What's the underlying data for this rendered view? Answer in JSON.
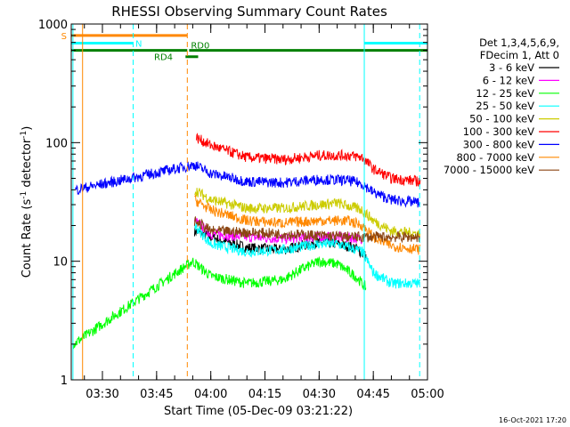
{
  "chart_data": {
    "type": "line",
    "title": "RHESSI Observing Summary Count Rates",
    "ylabel_main": "Count Rate (s",
    "ylabel_sup1": "-1",
    "ylabel_mid": " detector",
    "ylabel_sup2": "-1",
    "ylabel_end": ")",
    "xlabel": "Start Time (05-Dec-09 03:21:22)",
    "timestamp": "16-Oct-2021 17:20",
    "y_scale": "log",
    "ylim": [
      1,
      1000
    ],
    "xlim": [
      "03:21:22",
      "05:00:00"
    ],
    "y_ticks": [
      {
        "value": 1,
        "label": "1"
      },
      {
        "value": 10,
        "label": "10"
      },
      {
        "value": 100,
        "label": "100"
      },
      {
        "value": 1000,
        "label": "1000"
      }
    ],
    "x_ticks": [
      {
        "time": "03:30",
        "label": "03:30"
      },
      {
        "time": "03:45",
        "label": "03:45"
      },
      {
        "time": "04:00",
        "label": "04:00"
      },
      {
        "time": "04:15",
        "label": "04:15"
      },
      {
        "time": "04:30",
        "label": "04:30"
      },
      {
        "time": "04:45",
        "label": "04:45"
      },
      {
        "time": "05:00",
        "label": "05:00"
      }
    ],
    "legend_header": [
      "Det 1,3,4,5,6,9,",
      "FDecim 1, Att 0"
    ],
    "legend_placement": "right",
    "series": [
      {
        "name": "3 - 6 keV",
        "color": "#000000",
        "points": [
          [
            "03:55:30",
            18
          ],
          [
            "04:00",
            16
          ],
          [
            "04:10",
            13
          ],
          [
            "04:20",
            12.5
          ],
          [
            "04:30",
            14.5
          ],
          [
            "04:35",
            14
          ],
          [
            "04:40",
            13
          ],
          [
            "04:43",
            11
          ]
        ]
      },
      {
        "name": "6 - 12 keV",
        "color": "#ff00ff",
        "points": [
          [
            "03:55:30",
            22
          ],
          [
            "04:00",
            17
          ],
          [
            "04:10",
            16
          ],
          [
            "04:20",
            15.5
          ],
          [
            "04:30",
            16
          ],
          [
            "04:35",
            16
          ],
          [
            "04:42",
            15.5
          ]
        ]
      },
      {
        "name": "12 - 25 keV",
        "color": "#00ff00",
        "points": [
          [
            "03:22",
            2
          ],
          [
            "03:55",
            10
          ],
          [
            "04:00",
            7.5
          ],
          [
            "04:10",
            6.5
          ],
          [
            "04:20",
            7
          ],
          [
            "04:25",
            8.5
          ],
          [
            "04:30",
            10
          ],
          [
            "04:35",
            9.5
          ],
          [
            "04:40",
            7.5
          ],
          [
            "04:43",
            6
          ]
        ]
      },
      {
        "name": "25 - 50 keV",
        "color": "#00ffff",
        "points": [
          [
            "03:55:30",
            20
          ],
          [
            "04:00",
            14
          ],
          [
            "04:10",
            12
          ],
          [
            "04:20",
            12.5
          ],
          [
            "04:30",
            14
          ],
          [
            "04:35",
            14
          ],
          [
            "04:42",
            12
          ],
          [
            "04:45",
            8
          ],
          [
            "04:50",
            6.5
          ],
          [
            "04:58",
            6.5
          ]
        ]
      },
      {
        "name": "50 - 100 keV",
        "color": "#cccc00",
        "points": [
          [
            "03:55:30",
            40
          ],
          [
            "04:00",
            33
          ],
          [
            "04:10",
            28
          ],
          [
            "04:20",
            28
          ],
          [
            "04:30",
            30
          ],
          [
            "04:35",
            31
          ],
          [
            "04:42",
            27
          ],
          [
            "04:45",
            22
          ],
          [
            "04:50",
            18
          ],
          [
            "04:58",
            17
          ]
        ]
      },
      {
        "name": "100 - 300 keV",
        "color": "#ff0000",
        "points": [
          [
            "03:56",
            110
          ],
          [
            "04:00",
            95
          ],
          [
            "04:10",
            75
          ],
          [
            "04:20",
            72
          ],
          [
            "04:30",
            78
          ],
          [
            "04:38",
            78
          ],
          [
            "04:42",
            75
          ],
          [
            "04:45",
            60
          ],
          [
            "04:50",
            50
          ],
          [
            "04:58",
            47
          ]
        ]
      },
      {
        "name": "300 - 800 keV",
        "color": "#0000ff",
        "points": [
          [
            "03:22:30",
            40
          ],
          [
            "03:55:30",
            65
          ],
          [
            "04:00",
            55
          ],
          [
            "04:10",
            47
          ],
          [
            "04:20",
            46
          ],
          [
            "04:30",
            49
          ],
          [
            "04:38",
            48
          ],
          [
            "04:42",
            45
          ],
          [
            "04:45",
            38
          ],
          [
            "04:50",
            33
          ],
          [
            "04:58",
            31
          ]
        ]
      },
      {
        "name": "800 - 7000 keV",
        "color": "#ff8800",
        "points": [
          [
            "03:55:30",
            33
          ],
          [
            "04:00",
            27
          ],
          [
            "04:10",
            22
          ],
          [
            "04:20",
            21
          ],
          [
            "04:30",
            22
          ],
          [
            "04:38",
            22
          ],
          [
            "04:42",
            20
          ],
          [
            "04:45",
            16
          ],
          [
            "04:50",
            13.5
          ],
          [
            "04:58",
            12.5
          ]
        ]
      },
      {
        "name": "7000 - 15000 keV",
        "color": "#8b4513",
        "points": [
          [
            "03:55:30",
            22
          ],
          [
            "04:00",
            18
          ],
          [
            "04:20",
            17
          ],
          [
            "04:40",
            16
          ],
          [
            "04:58",
            16
          ]
        ]
      }
    ],
    "annotations": [
      {
        "label": "S",
        "color": "#ff8800",
        "start": "03:21:22",
        "end": "03:53:30",
        "level": 800
      },
      {
        "label": "N",
        "color": "#00ffff",
        "start": "03:21:22",
        "end": "03:38:30",
        "level": 690
      },
      {
        "label": "N",
        "color": "#00ffff",
        "start": "04:42:30",
        "end": "05:00",
        "level": 690
      },
      {
        "label": "RD4",
        "color": "#008000",
        "start": "03:21:22",
        "end": "03:53:30",
        "level": 600
      },
      {
        "label": "RD4",
        "color": "#008000",
        "start": "03:53:00",
        "end": "03:56:30",
        "level": 530
      },
      {
        "label": "RD0",
        "color": "#008000",
        "start": "03:54:00",
        "end": "05:00",
        "level": 600
      }
    ],
    "vertical_lines": [
      {
        "time": "03:21:50",
        "color": "#00ffff",
        "style": "solid"
      },
      {
        "time": "03:24:30",
        "color": "#ff8800",
        "style": "solid"
      },
      {
        "time": "03:38:30",
        "color": "#00ffff",
        "style": "dashed"
      },
      {
        "time": "03:53:30",
        "color": "#ff8800",
        "style": "dashed"
      },
      {
        "time": "04:42:30",
        "color": "#00ffff",
        "style": "solid"
      },
      {
        "time": "04:57:50",
        "color": "#00ffff",
        "style": "dashed"
      }
    ]
  }
}
